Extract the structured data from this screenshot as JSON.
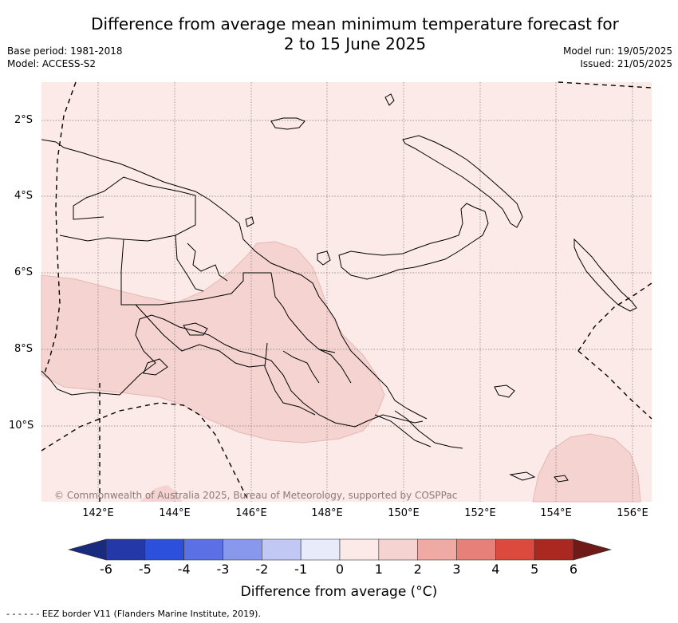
{
  "header": {
    "title_line1": "Difference from average mean minimum temperature forecast for",
    "title_line2": "2 to 15 June 2025",
    "base_period": "Base period: 1981-2018",
    "model": "Model: ACCESS-S2",
    "model_run": "Model run: 19/05/2025",
    "issued": "Issued: 21/05/2025"
  },
  "map": {
    "latitude_labels": [
      "2°S",
      "4°S",
      "6°S",
      "8°S",
      "10°S"
    ],
    "longitude_labels": [
      "142°E",
      "144°E",
      "146°E",
      "148°E",
      "150°E",
      "152°E",
      "154°E",
      "156°E"
    ],
    "copyright": "© Commonwealth of Australia 2025, Bureau of Meteorology, supported by COSPPac",
    "region": "Papua New Guinea",
    "anomaly_regions": [
      {
        "band": "0 to 1",
        "color": "#fbeae7",
        "coverage": "background"
      },
      {
        "band": "1 to 2",
        "color": "#f5d3d0",
        "coverage": "southern mainland and Gulf of Papua"
      },
      {
        "band": "1 to 2",
        "color": "#f5d3d0",
        "coverage": "south-east corner of sea"
      }
    ]
  },
  "colorbar": {
    "ticks": [
      "-6",
      "-5",
      "-4",
      "-3",
      "-2",
      "-1",
      "0",
      "1",
      "2",
      "3",
      "4",
      "5",
      "6"
    ],
    "colors": [
      "#2438a8",
      "#2d50dc",
      "#5a70e4",
      "#8898ec",
      "#c2c8f4",
      "#e8ecfa",
      "#fbeae7",
      "#f5d3d0",
      "#f0aaa4",
      "#e8807a",
      "#dc4a3e",
      "#aa2820"
    ],
    "under_color": "#1a2a7c",
    "over_color": "#6e1a18",
    "title": "Difference from average (°C)"
  },
  "footer": {
    "legend_text": "- -  - -  - - EEZ border V11 (Flanders Marine Institute, 2019)."
  }
}
